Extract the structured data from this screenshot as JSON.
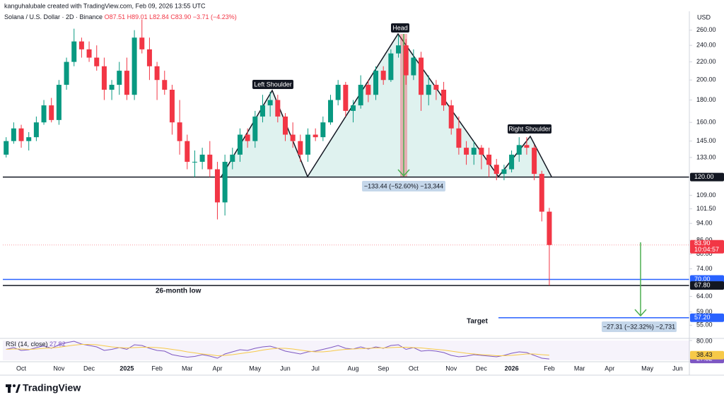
{
  "header": {
    "author_line": "kanguhalubale created with TradingView.com, Feb 09, 2026 13:55 UTC",
    "brand": "TradingView"
  },
  "chart_data": {
    "type": "candlestick",
    "symbol": "Solana / U.S. Dollar · 2D · Binance",
    "ohlc_legend": [
      "O87.51",
      "H89.01",
      "L82.84",
      "C83.90",
      "−3.71 (−4.23%)"
    ],
    "currency": "USD",
    "log_scale": true,
    "grid": false,
    "up_color": "#089981",
    "down_color": "#f23645",
    "categories": [
      null,
      null,
      "Oct",
      null,
      null,
      null,
      null,
      "Nov",
      null,
      null,
      null,
      "Dec",
      null,
      null,
      null,
      null,
      "2025",
      null,
      null,
      null,
      "Feb",
      null,
      null,
      null,
      "Mar",
      null,
      null,
      null,
      "Apr",
      null,
      null,
      null,
      null,
      "May",
      null,
      null,
      null,
      "Jun",
      null,
      null,
      null,
      "Jul",
      null,
      null,
      null,
      null,
      "Aug",
      null,
      null,
      null,
      "Sep",
      null,
      null,
      null,
      "Oct",
      null,
      null,
      null,
      null,
      "Nov",
      null,
      null,
      null,
      "Dec",
      null,
      null,
      null,
      "2026",
      null,
      null,
      null,
      null,
      "Feb",
      null,
      null,
      null,
      "Mar",
      null,
      null,
      null,
      "Apr",
      null,
      null,
      null,
      null,
      "May",
      null,
      null,
      null,
      "Jun"
    ],
    "open": [
      135,
      145,
      155,
      145,
      148,
      160,
      175,
      162,
      195,
      220,
      245,
      235,
      225,
      215,
      190,
      195,
      210,
      185,
      250,
      235,
      215,
      200,
      190,
      160,
      145,
      130,
      130,
      135,
      125,
      105,
      130,
      135,
      150,
      145,
      165,
      175,
      180,
      165,
      150,
      145,
      135,
      150,
      148,
      160,
      180,
      195,
      170,
      175,
      195,
      185,
      210,
      200,
      230,
      240,
      205,
      225,
      185,
      195,
      190,
      175,
      155,
      140,
      135,
      140,
      135,
      128,
      122,
      125,
      135,
      142,
      140,
      122,
      100,
      null,
      null,
      null,
      null,
      null,
      null,
      null,
      null,
      null,
      null,
      null,
      null,
      null,
      null,
      null,
      null,
      null
    ],
    "high": [
      148,
      160,
      158,
      152,
      165,
      180,
      182,
      200,
      225,
      262,
      250,
      245,
      240,
      225,
      200,
      220,
      225,
      260,
      275,
      250,
      220,
      210,
      195,
      180,
      150,
      138,
      140,
      145,
      130,
      135,
      140,
      155,
      155,
      170,
      185,
      188,
      185,
      168,
      160,
      150,
      155,
      155,
      165,
      185,
      200,
      198,
      180,
      205,
      200,
      215,
      215,
      235,
      253,
      248,
      235,
      232,
      205,
      200,
      198,
      180,
      165,
      145,
      145,
      142,
      140,
      132,
      128,
      138,
      148,
      148,
      142,
      124,
      102,
      null,
      null,
      null,
      null,
      null,
      null,
      null,
      null,
      null,
      null,
      null,
      null,
      null,
      null,
      null,
      null,
      null
    ],
    "low": [
      133,
      143,
      140,
      138,
      145,
      158,
      160,
      158,
      190,
      215,
      225,
      220,
      210,
      180,
      180,
      185,
      180,
      180,
      230,
      200,
      180,
      185,
      150,
      135,
      125,
      120,
      125,
      120,
      96,
      98,
      125,
      130,
      140,
      140,
      160,
      165,
      160,
      145,
      140,
      130,
      130,
      145,
      145,
      158,
      175,
      165,
      160,
      172,
      178,
      180,
      195,
      198,
      225,
      195,
      200,
      170,
      175,
      180,
      170,
      150,
      135,
      128,
      128,
      125,
      120,
      118,
      118,
      123,
      130,
      135,
      118,
      95,
      67.8,
      null,
      null,
      null,
      null,
      null,
      null,
      null,
      null,
      null,
      null,
      null,
      null,
      null,
      null,
      null,
      null,
      null
    ],
    "close": [
      145,
      155,
      145,
      148,
      160,
      175,
      162,
      195,
      220,
      245,
      235,
      225,
      215,
      190,
      195,
      210,
      185,
      250,
      235,
      215,
      200,
      190,
      160,
      145,
      130,
      130,
      135,
      125,
      105,
      130,
      135,
      150,
      145,
      165,
      175,
      180,
      165,
      150,
      145,
      135,
      150,
      148,
      160,
      180,
      195,
      170,
      175,
      195,
      185,
      210,
      200,
      230,
      240,
      205,
      225,
      185,
      195,
      190,
      175,
      155,
      140,
      135,
      140,
      135,
      128,
      122,
      125,
      135,
      142,
      140,
      122,
      100,
      83.9,
      null,
      null,
      null,
      null,
      null,
      null,
      null,
      null,
      null,
      null,
      null,
      null,
      null,
      null,
      null,
      null,
      null
    ],
    "ylim": [
      51.5,
      285
    ],
    "yticks": [
      {
        "value": 260,
        "label": "260.00"
      },
      {
        "value": 240,
        "label": "240.00"
      },
      {
        "value": 220,
        "label": "220.00"
      },
      {
        "value": 200,
        "label": "200.00"
      },
      {
        "value": 180,
        "label": "180.00"
      },
      {
        "value": 160,
        "label": "160.00"
      },
      {
        "value": 145,
        "label": "145.00"
      },
      {
        "value": 133,
        "label": "133.00"
      },
      {
        "value": 120,
        "label": "120.00"
      },
      {
        "value": 109,
        "label": "109.00"
      },
      {
        "value": 101.5,
        "label": "101.50"
      },
      {
        "value": 94,
        "label": "94.00"
      },
      {
        "value": 86,
        "label": "86.00"
      },
      {
        "value": 80,
        "label": "80.00"
      },
      {
        "value": 74,
        "label": "74.00"
      },
      {
        "value": 64,
        "label": "64.00"
      },
      {
        "value": 59,
        "label": "59.00"
      },
      {
        "value": 55,
        "label": "55.00"
      }
    ],
    "levels": [
      {
        "value": 120,
        "label": "120.00",
        "color": "#131722"
      },
      {
        "value": 70,
        "label": "70.00",
        "color": "#2962ff"
      },
      {
        "value": 67.8,
        "label": "67.80",
        "color": "#131722"
      },
      {
        "value": 57.2,
        "label": "57.20",
        "color": "#2962ff"
      }
    ],
    "last_price": {
      "value": 83.9,
      "label": "83.90",
      "countdown": "10:04:57",
      "color": "#f23645"
    },
    "annotations": {
      "head": "Head",
      "left_shoulder": "Left Shoulder",
      "right_shoulder": "Right Shoulder",
      "low_note": "26-month low",
      "target_note": "Target",
      "head_measure": "−133.44 (−52.60%) −13,344",
      "target_measure": "−27.31 (−32.32%) −2,731"
    },
    "rsi": {
      "title": "RSI (14, close)",
      "ylim": [
        20,
        84
      ],
      "yticks": [
        {
          "value": 80,
          "label": "80.00"
        }
      ],
      "series": [
        {
          "color": "#7e57c2",
          "values": [
            55,
            60,
            52,
            54,
            60,
            65,
            58,
            68,
            74,
            78,
            70,
            66,
            62,
            52,
            55,
            60,
            55,
            68,
            66,
            58,
            52,
            50,
            40,
            36,
            33,
            35,
            40,
            36,
            30,
            42,
            48,
            54,
            52,
            58,
            62,
            64,
            58,
            50,
            46,
            42,
            48,
            50,
            55,
            60,
            66,
            58,
            56,
            62,
            56,
            62,
            58,
            66,
            68,
            55,
            60,
            50,
            52,
            50,
            46,
            38,
            34,
            36,
            40,
            38,
            36,
            34,
            38,
            44,
            48,
            46,
            38,
            30,
            27.82,
            null,
            null,
            null,
            null,
            null,
            null,
            null,
            null,
            null,
            null,
            null,
            null,
            null,
            null,
            null,
            null,
            null
          ]
        },
        {
          "color": "#f7c948",
          "values": [
            55,
            56,
            56,
            55,
            56,
            58,
            59,
            61,
            64,
            67,
            69,
            69,
            68,
            65,
            62,
            60,
            59,
            60,
            61,
            61,
            60,
            58,
            55,
            52,
            48,
            45,
            42,
            40,
            37,
            38,
            40,
            43,
            46,
            49,
            53,
            56,
            58,
            58,
            56,
            53,
            50,
            48,
            48,
            50,
            53,
            55,
            56,
            57,
            58,
            59,
            59,
            60,
            61,
            61,
            60,
            59,
            57,
            55,
            53,
            50,
            47,
            44,
            42,
            40,
            39,
            37,
            37,
            38,
            40,
            42,
            42,
            40,
            38.43,
            null,
            null,
            null,
            null,
            null,
            null,
            null,
            null,
            null,
            null,
            null,
            null,
            null,
            null,
            null,
            null,
            null
          ]
        }
      ]
    }
  }
}
